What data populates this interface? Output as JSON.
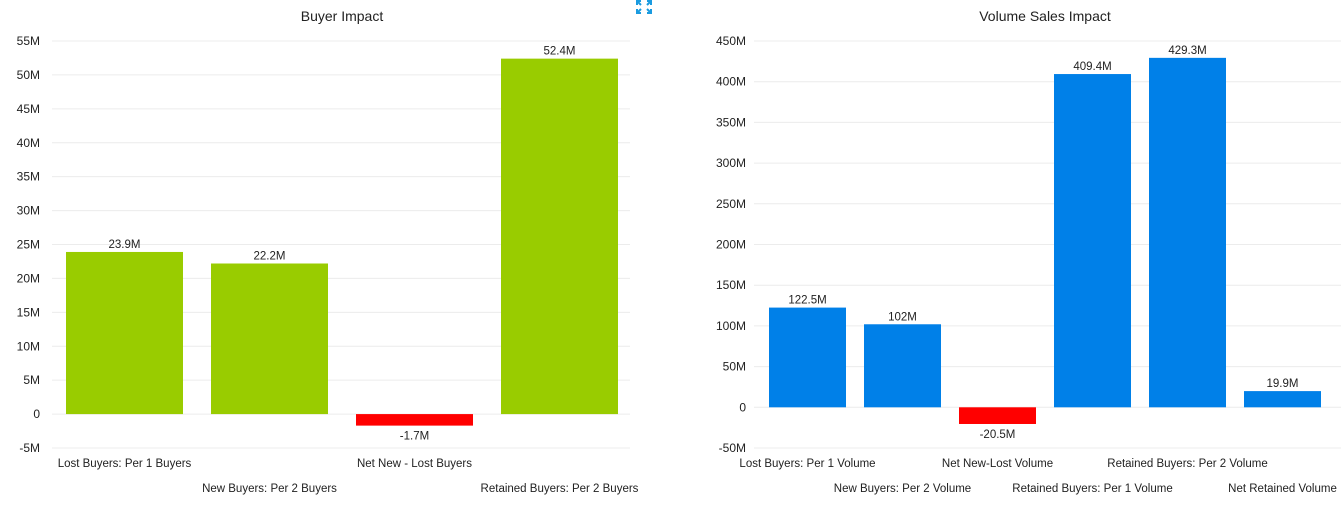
{
  "colors": {
    "positive_left": "#99cc00",
    "positive_right": "#0080e8",
    "negative": "#ff0000",
    "grid": "#ececec",
    "icon": "#1a9be0"
  },
  "expand_icon": "expand-icon",
  "chart_data": [
    {
      "type": "bar",
      "title": "Buyer Impact",
      "categories": [
        "Lost Buyers: Per 1 Buyers",
        "New Buyers: Per 2 Buyers",
        "Net New - Lost Buyers",
        "Retained Buyers: Per 2 Buyers"
      ],
      "values": [
        23.9,
        22.2,
        -1.7,
        52.4
      ],
      "data_labels": [
        "23.9M",
        "22.2M",
        "-1.7M",
        "52.4M"
      ],
      "unit": "M",
      "yticks": [
        -5,
        0,
        5,
        10,
        15,
        20,
        25,
        30,
        35,
        40,
        45,
        50,
        55
      ],
      "ytick_labels": [
        "-5M",
        "0",
        "5M",
        "10M",
        "15M",
        "20M",
        "25M",
        "30M",
        "35M",
        "40M",
        "45M",
        "50M",
        "55M"
      ],
      "ylim": [
        -5,
        55
      ],
      "grid": true,
      "xlabel": "",
      "ylabel": ""
    },
    {
      "type": "bar",
      "title": "Volume Sales Impact",
      "categories": [
        "Lost Buyers: Per 1 Volume",
        "New Buyers: Per 2 Volume",
        "Net New-Lost Volume",
        "Retained Buyers: Per 1 Volume",
        "Retained Buyers: Per 2 Volume",
        "Net Retained Volume"
      ],
      "values": [
        122.5,
        102,
        -20.5,
        409.4,
        429.3,
        19.9
      ],
      "data_labels": [
        "122.5M",
        "102M",
        "-20.5M",
        "409.4M",
        "429.3M",
        "19.9M"
      ],
      "unit": "M",
      "yticks": [
        -50,
        0,
        50,
        100,
        150,
        200,
        250,
        300,
        350,
        400,
        450
      ],
      "ytick_labels": [
        "-50M",
        "0",
        "50M",
        "100M",
        "150M",
        "200M",
        "250M",
        "300M",
        "350M",
        "400M",
        "450M"
      ],
      "ylim": [
        -50,
        450
      ],
      "grid": true,
      "xlabel": "",
      "ylabel": ""
    }
  ]
}
